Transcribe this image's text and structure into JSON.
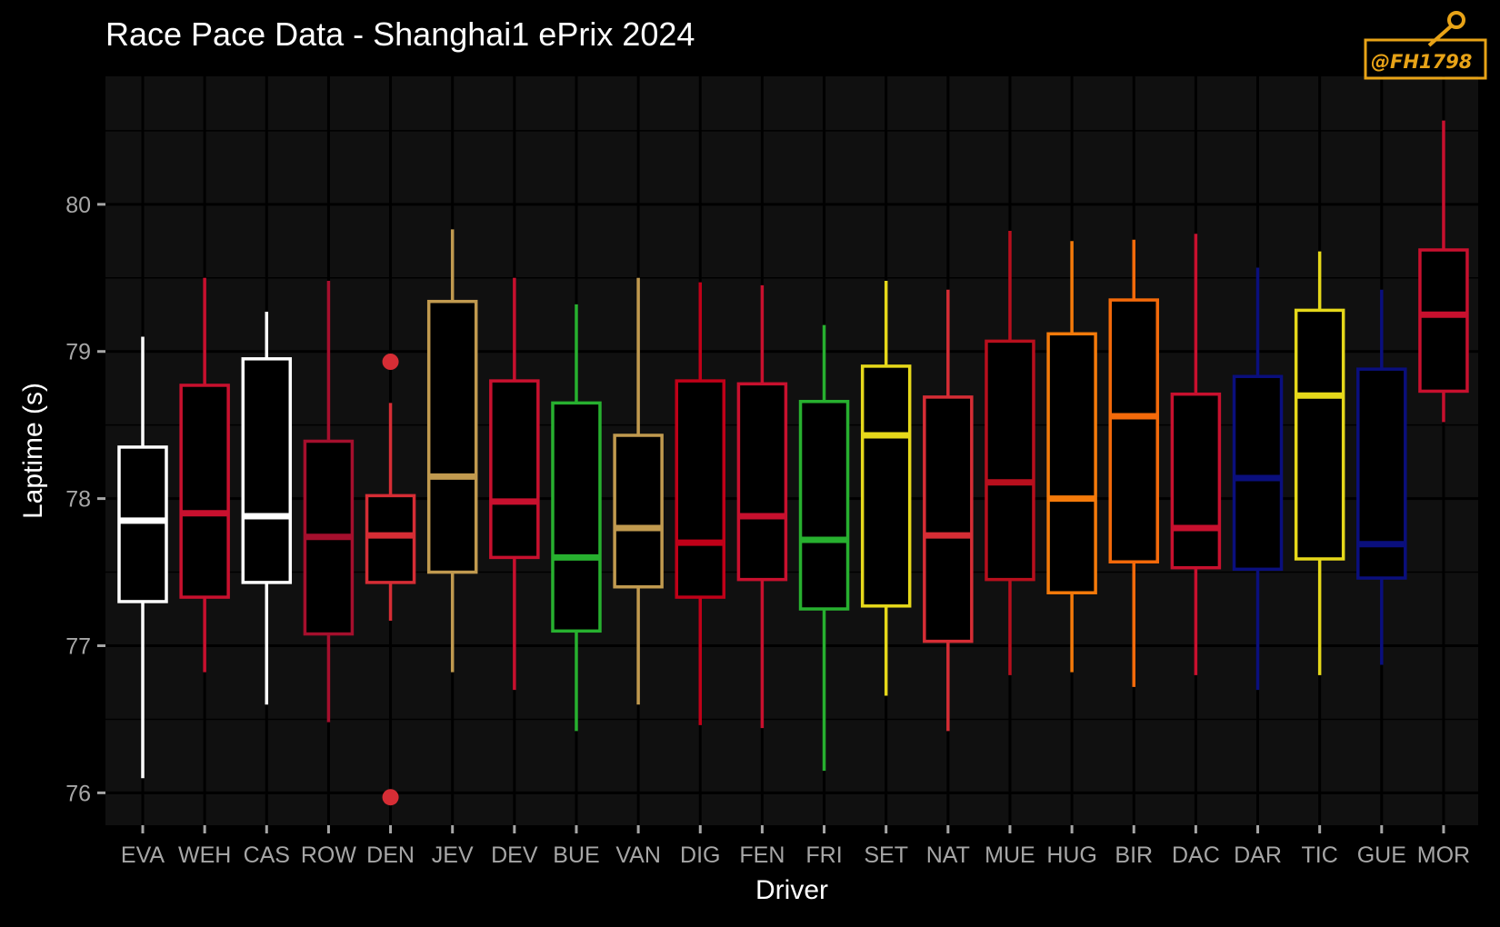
{
  "chart_data": {
    "type": "box",
    "title": "Race Pace Data - Shanghai1 ePrix 2024",
    "xlabel": "Driver",
    "ylabel": "Laptime (s)",
    "ylim": [
      75.78,
      80.87
    ],
    "y_ticks": [
      76,
      77,
      78,
      79,
      80
    ],
    "y_tick_labels": [
      "76",
      "77",
      "78",
      "79",
      "80"
    ],
    "grid": true,
    "legend": "none",
    "watermark": "@FH1798",
    "categories": [
      "EVA",
      "WEH",
      "CAS",
      "ROW",
      "DEN",
      "JEV",
      "DEV",
      "BUE",
      "VAN",
      "DIG",
      "FEN",
      "FRI",
      "SET",
      "NAT",
      "MUE",
      "HUG",
      "BIR",
      "DAC",
      "DAR",
      "TIC",
      "GUE",
      "MOR"
    ],
    "boxes": [
      {
        "driver": "EVA",
        "color": "#ffffff",
        "whisker_low": 76.1,
        "q1": 77.3,
        "median": 77.85,
        "q3": 78.35,
        "whisker_high": 79.1,
        "outliers": []
      },
      {
        "driver": "WEH",
        "color": "#c8102e",
        "whisker_low": 76.82,
        "q1": 77.33,
        "median": 77.9,
        "q3": 78.77,
        "whisker_high": 79.5,
        "outliers": []
      },
      {
        "driver": "CAS",
        "color": "#ffffff",
        "whisker_low": 76.6,
        "q1": 77.43,
        "median": 77.88,
        "q3": 78.95,
        "whisker_high": 79.27,
        "outliers": []
      },
      {
        "driver": "ROW",
        "color": "#a50f2d",
        "whisker_low": 76.48,
        "q1": 77.08,
        "median": 77.74,
        "q3": 78.39,
        "whisker_high": 79.48,
        "outliers": []
      },
      {
        "driver": "DEN",
        "color": "#d62d35",
        "whisker_low": 77.17,
        "q1": 77.43,
        "median": 77.75,
        "q3": 78.02,
        "whisker_high": 78.65,
        "outliers": [
          78.93,
          75.97
        ]
      },
      {
        "driver": "JEV",
        "color": "#c19a4f",
        "whisker_low": 76.82,
        "q1": 77.5,
        "median": 78.15,
        "q3": 79.34,
        "whisker_high": 79.83,
        "outliers": []
      },
      {
        "driver": "DEV",
        "color": "#c8102e",
        "whisker_low": 76.7,
        "q1": 77.6,
        "median": 77.98,
        "q3": 78.8,
        "whisker_high": 79.5,
        "outliers": []
      },
      {
        "driver": "BUE",
        "color": "#27b02f",
        "whisker_low": 76.42,
        "q1": 77.1,
        "median": 77.6,
        "q3": 78.65,
        "whisker_high": 79.32,
        "outliers": []
      },
      {
        "driver": "VAN",
        "color": "#c19a4f",
        "whisker_low": 76.6,
        "q1": 77.4,
        "median": 77.8,
        "q3": 78.43,
        "whisker_high": 79.5,
        "outliers": []
      },
      {
        "driver": "DIG",
        "color": "#c00018",
        "whisker_low": 76.46,
        "q1": 77.33,
        "median": 77.7,
        "q3": 78.8,
        "whisker_high": 79.47,
        "outliers": []
      },
      {
        "driver": "FEN",
        "color": "#c8102e",
        "whisker_low": 76.44,
        "q1": 77.45,
        "median": 77.88,
        "q3": 78.78,
        "whisker_high": 79.45,
        "outliers": []
      },
      {
        "driver": "FRI",
        "color": "#27b02f",
        "whisker_low": 76.15,
        "q1": 77.25,
        "median": 77.72,
        "q3": 78.66,
        "whisker_high": 79.18,
        "outliers": []
      },
      {
        "driver": "SET",
        "color": "#e6d81a",
        "whisker_low": 76.66,
        "q1": 77.27,
        "median": 78.43,
        "q3": 78.9,
        "whisker_high": 79.48,
        "outliers": []
      },
      {
        "driver": "NAT",
        "color": "#d62d35",
        "whisker_low": 76.42,
        "q1": 77.03,
        "median": 77.75,
        "q3": 78.69,
        "whisker_high": 79.42,
        "outliers": []
      },
      {
        "driver": "MUE",
        "color": "#b80f1d",
        "whisker_low": 76.8,
        "q1": 77.45,
        "median": 78.11,
        "q3": 79.07,
        "whisker_high": 79.82,
        "outliers": []
      },
      {
        "driver": "HUG",
        "color": "#f47a0a",
        "whisker_low": 76.82,
        "q1": 77.36,
        "median": 78.0,
        "q3": 79.12,
        "whisker_high": 79.75,
        "outliers": []
      },
      {
        "driver": "BIR",
        "color": "#f46a0a",
        "whisker_low": 76.72,
        "q1": 77.57,
        "median": 78.56,
        "q3": 79.35,
        "whisker_high": 79.76,
        "outliers": []
      },
      {
        "driver": "DAC",
        "color": "#c8102e",
        "whisker_low": 76.8,
        "q1": 77.53,
        "median": 77.8,
        "q3": 78.71,
        "whisker_high": 79.8,
        "outliers": []
      },
      {
        "driver": "DAR",
        "color": "#0a0f7d",
        "whisker_low": 76.7,
        "q1": 77.52,
        "median": 78.14,
        "q3": 78.83,
        "whisker_high": 79.57,
        "outliers": []
      },
      {
        "driver": "TIC",
        "color": "#e6d81a",
        "whisker_low": 76.8,
        "q1": 77.59,
        "median": 78.7,
        "q3": 79.28,
        "whisker_high": 79.68,
        "outliers": []
      },
      {
        "driver": "GUE",
        "color": "#0a0f7d",
        "whisker_low": 76.87,
        "q1": 77.46,
        "median": 77.69,
        "q3": 78.88,
        "whisker_high": 79.42,
        "outliers": []
      },
      {
        "driver": "MOR",
        "color": "#c8102e",
        "whisker_low": 78.52,
        "q1": 78.73,
        "median": 79.25,
        "q3": 79.69,
        "whisker_high": 80.57,
        "outliers": []
      }
    ]
  }
}
